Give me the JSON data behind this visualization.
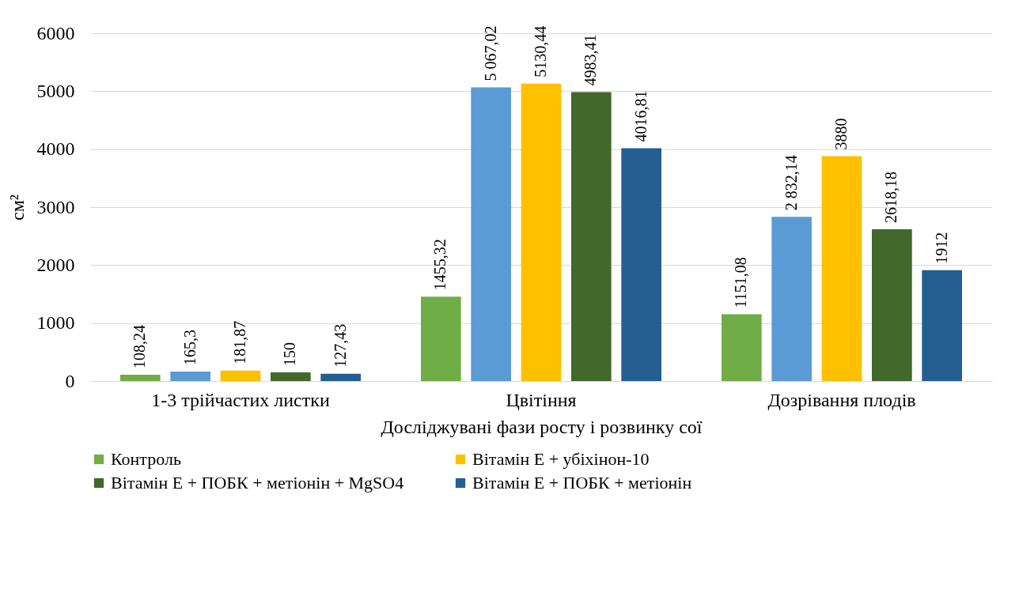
{
  "chart_data": {
    "type": "bar",
    "xlabel": "Досліджувані фази росту і розвинку сої",
    "ylabel": "см²",
    "categories": [
      "1-3 трійчастих листки",
      "Цвітіння",
      "Дозрівання плодів"
    ],
    "series": [
      {
        "name": "Контроль",
        "color": "#70ad47",
        "values": [
          108.24,
          1455.32,
          1151.08
        ],
        "value_labels": [
          "108,24",
          "1455,32",
          "1151,08"
        ]
      },
      {
        "color": "#5b9bd5",
        "values": [
          165.3,
          5067.02,
          2832.14
        ],
        "value_labels": [
          "165,3",
          "5 067,02",
          "2 832,14"
        ]
      },
      {
        "name": "Вітамін Е + убіхінон-10",
        "color": "#ffc000",
        "values": [
          181.87,
          5130.44,
          3880
        ],
        "value_labels": [
          "181,87",
          "5130,44",
          "3880"
        ]
      },
      {
        "name": "Вітамін Е + ПОБК + метіонін + MgSO4",
        "color": "#43682b",
        "values": [
          150,
          4983.41,
          2618.18
        ],
        "value_labels": [
          "150",
          "4983,41",
          "2618,18"
        ]
      },
      {
        "name": "Вітамін Е + ПОБК + метіонін",
        "color": "#255e91",
        "values": [
          127.43,
          4016.81,
          1912
        ],
        "value_labels": [
          "127,43",
          "4016,81",
          "1912"
        ]
      }
    ],
    "ylim": [
      0,
      6000
    ],
    "yticks": [
      0,
      1000,
      2000,
      3000,
      4000,
      5000,
      6000
    ],
    "grid": "y",
    "legend": "bottom"
  }
}
